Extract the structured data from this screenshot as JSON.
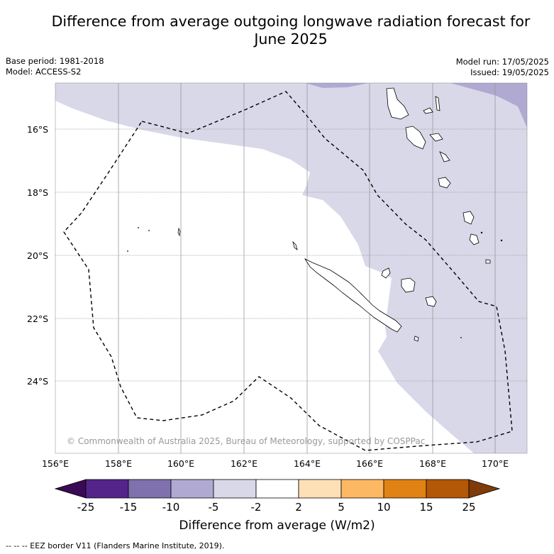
{
  "title": "Difference from average outgoing longwave radiation forecast for June 2025",
  "title_line1": "Difference from average outgoing longwave radiation forecast for",
  "title_line2": "June 2025",
  "meta_left": {
    "base_period": "Base period: 1981-2018",
    "model": "Model: ACCESS-S2"
  },
  "meta_right": {
    "model_run": "Model run: 17/05/2025",
    "issued": "Issued: 19/05/2025"
  },
  "map": {
    "lat_labels": [
      "16°S",
      "18°S",
      "20°S",
      "22°S",
      "24°S"
    ],
    "lon_labels": [
      "156°E",
      "158°E",
      "160°E",
      "162°E",
      "164°E",
      "166°E",
      "168°E",
      "170°E"
    ],
    "copyright": "© Commonwealth of Australia 2025, Bureau of Meteorology, supported by COSPPac",
    "colors": {
      "neg2_to_neg5": "#d8d8e9",
      "neg5_to_neg10": "#b0a9d2",
      "neutral": "#ffffff"
    }
  },
  "colorbar": {
    "title": "Difference from average (W/m2)",
    "ticks": [
      "-25",
      "-15",
      "-10",
      "-5",
      "-2",
      "2",
      "5",
      "10",
      "15",
      "25"
    ],
    "colors": [
      "#3a0a54",
      "#54248a",
      "#7f71ae",
      "#b0a9d2",
      "#d8d8e9",
      "#ffffff",
      "#fee0b6",
      "#fdb863",
      "#e08214",
      "#b35806",
      "#7f3b08"
    ]
  },
  "legend_footer": "--  --  -- EEZ border V11 (Flanders Marine Institute, 2019)."
}
